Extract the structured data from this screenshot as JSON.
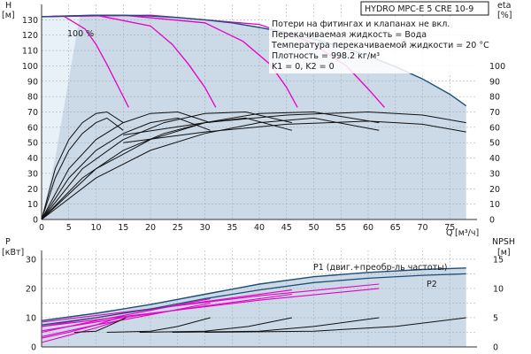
{
  "chart_data": [
    {
      "id": "head-efficiency",
      "type": "line",
      "title": "HYDRO MPC-E 5 CRE 10-9",
      "xlabel": "Q",
      "xunit": "[м³/ч]",
      "ylabel_left": "H",
      "yunit_left": "[м]",
      "ylabel_right": "eta",
      "yunit_right": "[%]",
      "xlim": [
        0,
        80
      ],
      "ylim_left": [
        0,
        140
      ],
      "ylim_right": [
        0,
        140
      ],
      "x_ticks": [
        0,
        5,
        10,
        15,
        20,
        25,
        30,
        35,
        40,
        45,
        50,
        55,
        60,
        65,
        70,
        75
      ],
      "y_ticks_left": [
        0,
        10,
        20,
        30,
        40,
        50,
        60,
        70,
        80,
        90,
        100,
        110,
        120,
        130
      ],
      "y_ticks_right": [
        0,
        10,
        20,
        30,
        40,
        50,
        60,
        70,
        80,
        90,
        100
      ],
      "grid": true,
      "annotation_speed": "100 %",
      "notes": [
        "Потери на фитингах и клапанах не вкл.",
        "Перекачиваемая жидкость = Вода",
        "Температура перекачиваемой жидкости = 20 °C",
        "Плотность = 998.2 кг/м³",
        "K1 = 0, K2 = 0"
      ],
      "colors": {
        "area": "#ccd9e6",
        "area_light": "#e8f0f8",
        "max_curve": "#1f4e79",
        "setpoint_curves": "#e600c8",
        "efficiency_curves": "#111111"
      },
      "max_head_curve": {
        "x": [
          0,
          5,
          10,
          15,
          20,
          25,
          30,
          35,
          40,
          45,
          50,
          55,
          60,
          65,
          70,
          75,
          78
        ],
        "y": [
          132,
          132.5,
          133,
          133,
          132.5,
          131.5,
          130,
          128,
          125,
          121.5,
          117.5,
          112.5,
          106.5,
          99.5,
          91.5,
          81.5,
          74
        ]
      },
      "setpoint_curves": [
        {
          "x": [
            0,
            4,
            8,
            10,
            12,
            14,
            16
          ],
          "y": [
            132,
            132.5,
            124,
            114,
            101,
            87,
            73
          ]
        },
        {
          "x": [
            0,
            10,
            20,
            24,
            27,
            30,
            32
          ],
          "y": [
            132,
            133,
            126,
            114,
            101,
            86,
            73
          ]
        },
        {
          "x": [
            0,
            15,
            30,
            37,
            42,
            45,
            47
          ],
          "y": [
            132,
            133,
            128,
            116,
            101,
            86,
            73
          ]
        },
        {
          "x": [
            0,
            20,
            40,
            49,
            56,
            60,
            63
          ],
          "y": [
            132,
            133,
            127,
            116,
            100,
            85,
            73
          ]
        }
      ],
      "efficiency_curves": [
        {
          "x": [
            0,
            2.5,
            5,
            7.5,
            10,
            12,
            15
          ],
          "y": [
            0,
            33,
            52,
            63,
            69,
            70,
            63
          ]
        },
        {
          "x": [
            0,
            2.5,
            5,
            7.5,
            10,
            12,
            15
          ],
          "y": [
            0,
            27,
            45,
            56,
            63,
            66,
            58
          ]
        },
        {
          "x": [
            0,
            5,
            10,
            15,
            20,
            25,
            31
          ],
          "y": [
            0,
            33,
            52,
            63,
            69,
            70,
            63
          ]
        },
        {
          "x": [
            0,
            5,
            10,
            15,
            20,
            25,
            31
          ],
          "y": [
            0,
            27,
            45,
            56,
            63,
            66,
            58
          ]
        },
        {
          "x": [
            0,
            7.5,
            15,
            22.5,
            30,
            37.5,
            46
          ],
          "y": [
            0,
            33,
            52,
            63,
            69,
            70,
            63
          ]
        },
        {
          "x": [
            0,
            7.5,
            15,
            22.5,
            30,
            37.5,
            46
          ],
          "y": [
            0,
            27,
            45,
            56,
            63,
            66,
            58
          ]
        },
        {
          "x": [
            0,
            10,
            20,
            30,
            40,
            50,
            62
          ],
          "y": [
            0,
            33,
            52,
            63,
            69,
            70,
            63
          ]
        },
        {
          "x": [
            0,
            10,
            20,
            30,
            40,
            50,
            62
          ],
          "y": [
            0,
            27,
            45,
            56,
            63,
            66,
            58
          ]
        },
        {
          "x": [
            15,
            30,
            45,
            60,
            70,
            78
          ],
          "y": [
            55,
            63,
            68,
            70,
            68,
            63
          ]
        },
        {
          "x": [
            15,
            30,
            45,
            60,
            70,
            78
          ],
          "y": [
            50,
            57,
            62,
            64,
            62,
            57
          ]
        }
      ]
    },
    {
      "id": "power-npsh",
      "type": "line",
      "xlabel": "",
      "ylabel_left": "P",
      "yunit_left": "[кВт]",
      "ylabel_right": "NPSH",
      "yunit_right": "[м]",
      "xlim": [
        0,
        80
      ],
      "ylim_left": [
        0,
        33
      ],
      "ylim_right": [
        0,
        16.5
      ],
      "y_ticks_left": [
        0,
        10,
        20,
        30
      ],
      "y_ticks_right": [
        0,
        5,
        10,
        15
      ],
      "grid": true,
      "series_labels": [
        "P1 (двиг.+преобр-ль частоты)",
        "P2"
      ],
      "p1_curve": {
        "x": [
          0,
          10,
          20,
          30,
          40,
          50,
          60,
          70,
          78
        ],
        "y": [
          9,
          11.5,
          14.5,
          18,
          21.5,
          24,
          25.5,
          26.5,
          27
        ]
      },
      "p2_curve": {
        "x": [
          0,
          10,
          20,
          30,
          40,
          50,
          60,
          70,
          78
        ],
        "y": [
          7.5,
          10,
          13,
          16.5,
          19.5,
          22,
          23.5,
          24.5,
          25
        ]
      },
      "power_setpoint_curves": [
        {
          "x": [
            0,
            5,
            10,
            15
          ],
          "y": [
            3,
            5,
            7.5,
            10.5
          ]
        },
        {
          "x": [
            0,
            5,
            10,
            15
          ],
          "y": [
            1.5,
            4,
            6.5,
            9.5
          ]
        },
        {
          "x": [
            0,
            10,
            20,
            31
          ],
          "y": [
            5,
            9,
            12.5,
            16.5
          ]
        },
        {
          "x": [
            0,
            10,
            20,
            31
          ],
          "y": [
            3.5,
            7.5,
            11,
            15
          ]
        },
        {
          "x": [
            0,
            15,
            30,
            46
          ],
          "y": [
            7,
            11.5,
            15.5,
            19.5
          ]
        },
        {
          "x": [
            0,
            15,
            30,
            46
          ],
          "y": [
            5.5,
            10,
            14,
            18
          ]
        },
        {
          "x": [
            0,
            20,
            40,
            62
          ],
          "y": [
            8.5,
            13,
            17.5,
            21.5
          ]
        },
        {
          "x": [
            0,
            20,
            40,
            62
          ],
          "y": [
            7,
            11.5,
            16,
            20
          ]
        }
      ],
      "npsh_curves": [
        {
          "x": [
            6,
            10,
            12,
            15.5
          ],
          "y": [
            2.5,
            2.7,
            3.5,
            5
          ]
        },
        {
          "x": [
            12,
            20,
            25,
            31
          ],
          "y": [
            2.5,
            2.7,
            3.5,
            5
          ]
        },
        {
          "x": [
            18,
            30,
            38,
            46
          ],
          "y": [
            2.5,
            2.7,
            3.5,
            5
          ]
        },
        {
          "x": [
            24,
            40,
            50,
            62
          ],
          "y": [
            2.5,
            2.7,
            3.5,
            5
          ]
        },
        {
          "x": [
            30,
            50,
            65,
            78
          ],
          "y": [
            2.5,
            2.7,
            3.5,
            5
          ]
        }
      ]
    }
  ]
}
